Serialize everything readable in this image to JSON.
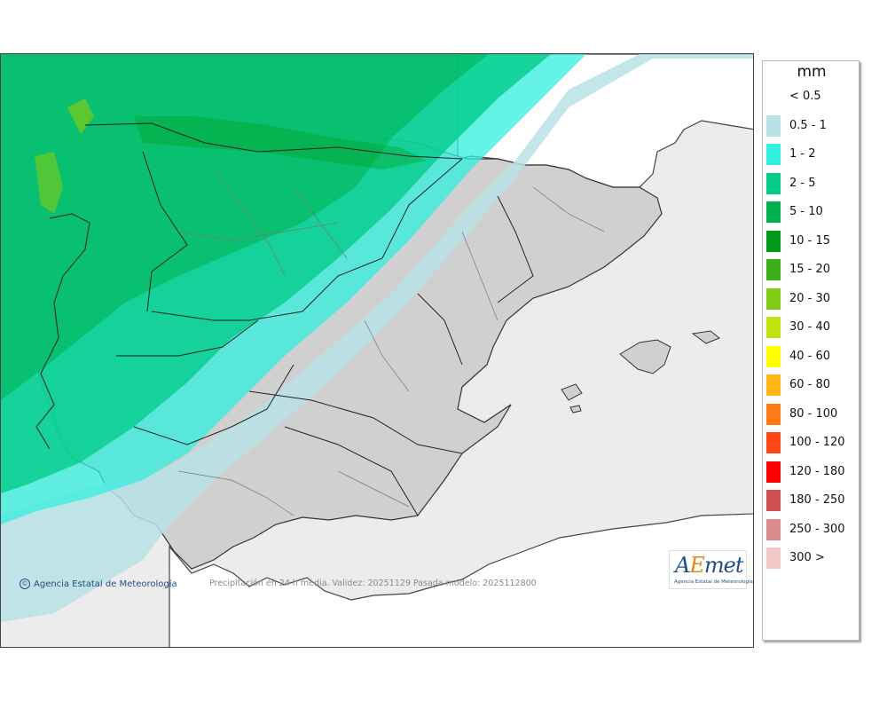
{
  "map": {
    "unit": "mm",
    "footer": "Precipitación en 24 h media. Validez: 20251129 Pasada modelo: 2025112800",
    "copyright": "Agencia Estatal de Meteorología",
    "copyright_icon": "copyright-icon",
    "logo": {
      "a": "A",
      "e": "E",
      "rest": "met",
      "subtitle": "Agencia Estatal de Meteorología"
    },
    "legend": [
      {
        "label": "< 0.5",
        "color": ""
      },
      {
        "label": "0.5 - 1",
        "color": "#b7e2e6"
      },
      {
        "label": "1 - 2",
        "color": "#33efdf"
      },
      {
        "label": "2 - 5",
        "color": "#00cc86"
      },
      {
        "label": "5 - 10",
        "color": "#00b050"
      },
      {
        "label": "10 - 15",
        "color": "#009a18"
      },
      {
        "label": "15 - 20",
        "color": "#3caf1b"
      },
      {
        "label": "20 - 30",
        "color": "#7fcc14"
      },
      {
        "label": "30 - 40",
        "color": "#bfe40f"
      },
      {
        "label": "40 - 60",
        "color": "#ffff00"
      },
      {
        "label": "60 - 80",
        "color": "#ffb515"
      },
      {
        "label": "80 - 100",
        "color": "#ff7a14"
      },
      {
        "label": "100 - 120",
        "color": "#ff4614"
      },
      {
        "label": "120 - 180",
        "color": "#ff0000"
      },
      {
        "label": "180 - 250",
        "color": "#cc5050"
      },
      {
        "label": "250 - 300",
        "color": "#da8c8c"
      },
      {
        "label": "300 >",
        "color": "#f0c8c8"
      }
    ]
  }
}
